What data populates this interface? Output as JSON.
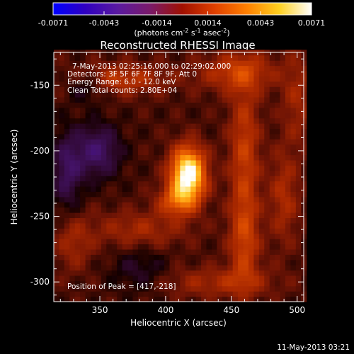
{
  "colorbar": {
    "min": -0.0071,
    "max": 0.0071,
    "tick_values": [
      -0.0071,
      -0.0043,
      -0.0014,
      0.0014,
      0.0043,
      0.0071
    ],
    "tick_labels": [
      "-0.0071",
      "-0.0043",
      "-0.0014",
      "0.0014",
      "0.0043",
      "0.0071"
    ],
    "units_text": "(photons cm",
    "units_exp1": "-2",
    "units_mid": " s",
    "units_exp2": "-1",
    "units_end": " asec",
    "units_exp3": "-2",
    "units_close": ")",
    "colors": [
      "#0000ff",
      "#3000c0",
      "#5a1aa0",
      "#7a1a6a",
      "#a01000",
      "#e04000",
      "#ff8000",
      "#ffd020",
      "#ffffff"
    ]
  },
  "title": "Reconstructed RHESSI Image",
  "info_lines": [
    "7-May-2013 02:25:16.000 to 02:29:02.000",
    "Detectors: 3F 5F 6F 7F 8F 9F, Att 0",
    "Energy Range: 6.0 - 12.0 keV",
    "Clean     Total counts: 2.80E+04"
  ],
  "peak_label": "Position of Peak = [417,-218]",
  "footer_timestamp": "11-May-2013 03:21",
  "chart_data": {
    "type": "heatmap",
    "title": "Reconstructed RHESSI Image",
    "xlabel": "Heliocentric X (arcsec)",
    "ylabel": "Heliocentric Y (arcsec)",
    "xlim": [
      315,
      505
    ],
    "ylim": [
      -315,
      -125
    ],
    "x_ticks": [
      350,
      400,
      450,
      500
    ],
    "y_ticks": [
      -300,
      -250,
      -200,
      -150
    ],
    "x_tick_labels": [
      "350",
      "400",
      "450",
      "500"
    ],
    "y_tick_labels": [
      "-300",
      "-250",
      "-200",
      "-150"
    ],
    "peak": {
      "x": 417,
      "y": -218
    },
    "value_range": [
      -0.0071,
      0.0071
    ],
    "features": [
      {
        "x": 417,
        "y": -218,
        "amp": 1.0,
        "sx": 9,
        "sy": 14
      },
      {
        "x": 408,
        "y": -238,
        "amp": 0.35,
        "sx": 10,
        "sy": 8
      },
      {
        "x": 348,
        "y": -200,
        "amp": -0.35,
        "sx": 12,
        "sy": 14
      },
      {
        "x": 325,
        "y": -215,
        "amp": -0.3,
        "sx": 8,
        "sy": 20
      },
      {
        "x": 365,
        "y": -145,
        "amp": 0.28,
        "sx": 25,
        "sy": 8
      },
      {
        "x": 455,
        "y": -140,
        "amp": 0.3,
        "sx": 20,
        "sy": 10
      },
      {
        "x": 460,
        "y": -200,
        "amp": 0.3,
        "sx": 8,
        "sy": 40
      },
      {
        "x": 460,
        "y": -270,
        "amp": 0.28,
        "sx": 8,
        "sy": 25
      },
      {
        "x": 490,
        "y": -235,
        "amp": 0.22,
        "sx": 8,
        "sy": 25
      },
      {
        "x": 380,
        "y": -260,
        "amp": 0.2,
        "sx": 25,
        "sy": 10
      },
      {
        "x": 330,
        "y": -270,
        "amp": 0.18,
        "sx": 10,
        "sy": 15
      },
      {
        "x": 440,
        "y": -300,
        "amp": 0.2,
        "sx": 30,
        "sy": 8
      },
      {
        "x": 340,
        "y": -150,
        "amp": -0.2,
        "sx": 10,
        "sy": 8
      },
      {
        "x": 380,
        "y": -290,
        "amp": -0.15,
        "sx": 15,
        "sy": 12
      },
      {
        "x": 500,
        "y": -160,
        "amp": 0.18,
        "sx": 8,
        "sy": 25
      }
    ]
  }
}
